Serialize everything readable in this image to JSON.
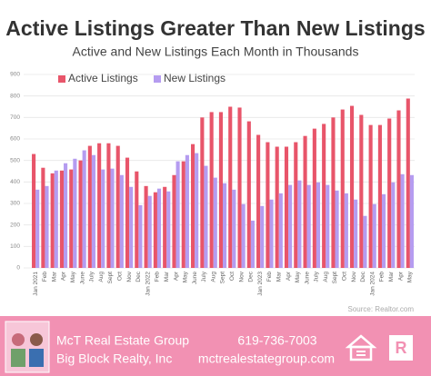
{
  "chart_data": {
    "type": "bar",
    "title": "Active Listings Greater Than New Listings",
    "subtitle": "Active and New Listings Each Month in Thousands",
    "source": "Source: Realtor.com",
    "categories": [
      "Jan 2021",
      "Feb",
      "Mar",
      "Apr",
      "May",
      "June",
      "July",
      "Aug",
      "Sept",
      "Oct",
      "Nov",
      "Dec",
      "Jan 2022",
      "Feb",
      "Mar",
      "Apr",
      "May",
      "June",
      "July",
      "Aug",
      "Sept",
      "Oct",
      "Nov",
      "Dec",
      "Jan 2023",
      "Feb",
      "Mar",
      "Apr",
      "May",
      "June",
      "July",
      "Aug",
      "Sept",
      "Oct",
      "Nov",
      "Dec",
      "Jan 2024",
      "Feb",
      "Mar",
      "Apr",
      "May"
    ],
    "series": [
      {
        "name": "Active Listings",
        "color": "#e8556a",
        "values": [
          530,
          466,
          440,
          453,
          458,
          500,
          568,
          580,
          580,
          568,
          513,
          449,
          381,
          352,
          377,
          432,
          496,
          576,
          700,
          725,
          725,
          750,
          746,
          682,
          619,
          585,
          564,
          564,
          585,
          614,
          648,
          670,
          700,
          737,
          754,
          712,
          665,
          665,
          695,
          733,
          788
        ]
      },
      {
        "name": "New Listings",
        "color": "#b59cf0",
        "values": [
          364,
          381,
          453,
          487,
          508,
          547,
          525,
          458,
          462,
          432,
          377,
          292,
          335,
          369,
          356,
          496,
          525,
          534,
          475,
          420,
          394,
          364,
          297,
          220,
          288,
          318,
          347,
          386,
          407,
          386,
          398,
          386,
          360,
          347,
          318,
          242,
          297,
          343,
          398,
          436,
          432
        ]
      }
    ],
    "ylim": [
      0,
      900
    ],
    "yticks": [
      0,
      100,
      200,
      300,
      400,
      500,
      600,
      700,
      800,
      900
    ],
    "grid": true,
    "legend": "top-left"
  },
  "footer": {
    "company": "McT Real Estate Group",
    "brokerage": "Big Block Realty, Inc",
    "phone": "619-736-7003",
    "website": "mctrealestategroup.com"
  }
}
